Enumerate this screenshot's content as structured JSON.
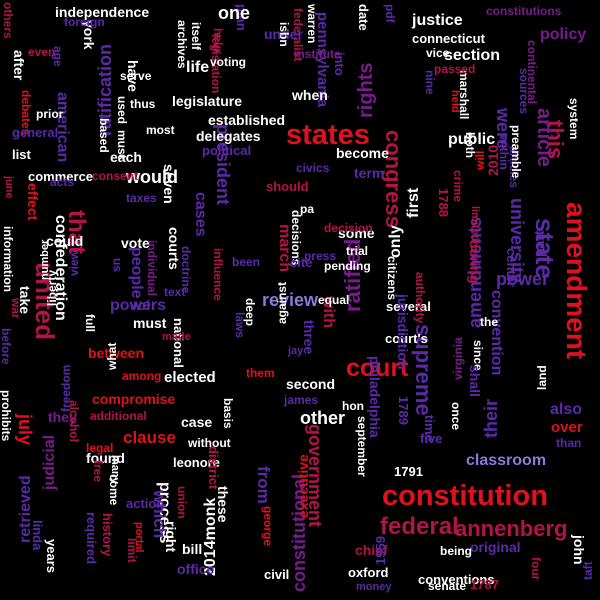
{
  "palette": {
    "background": "#000000",
    "red": "#e0101c",
    "crimson": "#b3124a",
    "purple": "#7a1a8c",
    "violet": "#5a2aa8",
    "blue": "#2a2ad6",
    "lavender": "#8c7ad8",
    "white": "#ffffff"
  },
  "words": [
    {
      "text": "constitution",
      "color": "#e0101c"
    },
    {
      "text": "states",
      "color": "#e0101c"
    },
    {
      "text": "amendment",
      "color": "#e0101c"
    },
    {
      "text": "united",
      "color": "#b3124a"
    },
    {
      "text": "court",
      "color": "#e0101c"
    },
    {
      "text": "federal",
      "color": "#b3124a"
    },
    {
      "text": "annenberg",
      "color": "#b3124a"
    },
    {
      "text": "state",
      "color": "#5a2aa8"
    },
    {
      "text": "this",
      "color": "#b3124a"
    },
    {
      "text": "congress",
      "color": "#b3124a"
    },
    {
      "text": "that",
      "color": "#b3124a"
    },
    {
      "text": "supreme",
      "color": "#5a2aa8"
    },
    {
      "text": "article",
      "color": "#7a1a8c"
    },
    {
      "text": "ratified",
      "color": "#7a1a8c"
    },
    {
      "text": "rights",
      "color": "#7a1a8c"
    },
    {
      "text": "president",
      "color": "#5a2aa8"
    },
    {
      "text": "government",
      "color": "#b3124a"
    },
    {
      "text": "from",
      "color": "#5a2aa8"
    },
    {
      "text": "would",
      "color": "#ffffff"
    },
    {
      "text": "review",
      "color": "#8c7ad8"
    },
    {
      "text": "confederation",
      "color": "#ffffff"
    },
    {
      "text": "ratification",
      "color": "#5a2aa8"
    },
    {
      "text": "amendments",
      "color": "#5a2aa8"
    },
    {
      "text": "university",
      "color": "#5a2aa8"
    },
    {
      "text": "their",
      "color": "#5a2aa8"
    },
    {
      "text": "power",
      "color": "#5a2aa8"
    },
    {
      "text": "classroom",
      "color": "#8c7ad8"
    },
    {
      "text": "process",
      "color": "#ffffff"
    },
    {
      "text": "which",
      "color": "#5a2aa8"
    },
    {
      "text": "2014monk",
      "color": "#ffffff"
    },
    {
      "text": "constitutional",
      "color": "#7a1a8c"
    },
    {
      "text": "executive",
      "color": "#e0101c"
    },
    {
      "text": "other",
      "color": "#ffffff"
    },
    {
      "text": "clause",
      "color": "#e0101c"
    },
    {
      "text": "only",
      "color": "#ffffff"
    },
    {
      "text": "first",
      "color": "#ffffff"
    },
    {
      "text": "public",
      "color": "#ffffff"
    },
    {
      "text": "justice",
      "color": "#ffffff"
    },
    {
      "text": "section",
      "color": "#ffffff"
    },
    {
      "text": "policy",
      "color": "#7a1a8c"
    },
    {
      "text": "constitutions",
      "color": "#7a1a8c"
    },
    {
      "text": "independence",
      "color": "#ffffff"
    },
    {
      "text": "american",
      "color": "#5a2aa8"
    },
    {
      "text": "legislature",
      "color": "#ffffff"
    },
    {
      "text": "established",
      "color": "#ffffff"
    },
    {
      "text": "delegates",
      "color": "#ffffff"
    },
    {
      "text": "pennsylvania",
      "color": "#5a2aa8"
    },
    {
      "text": "federalist",
      "color": "#b3124a"
    },
    {
      "text": "connecticut",
      "color": "#ffffff"
    },
    {
      "text": "convention",
      "color": "#5a2aa8"
    },
    {
      "text": "elected",
      "color": "#ffffff"
    },
    {
      "text": "original",
      "color": "#5a2aa8"
    },
    {
      "text": "retrieved",
      "color": "#5a2aa8"
    },
    {
      "text": "judicial",
      "color": "#7a1a8c"
    },
    {
      "text": "philadelphia",
      "color": "#5a2aa8"
    },
    {
      "text": "september",
      "color": "#ffffff"
    },
    {
      "text": "conventions",
      "color": "#ffffff"
    },
    {
      "text": "senate",
      "color": "#ffffff"
    },
    {
      "text": "being",
      "color": "#ffffff"
    },
    {
      "text": "chief",
      "color": "#b3124a"
    },
    {
      "text": "oxford",
      "color": "#ffffff"
    },
    {
      "text": "money",
      "color": "#5a2aa8"
    },
    {
      "text": "1791",
      "color": "#ffffff"
    },
    {
      "text": "1787",
      "color": "#b3124a"
    },
    {
      "text": "1788",
      "color": "#b3124a"
    },
    {
      "text": "1789",
      "color": "#5a2aa8"
    },
    {
      "text": "1959",
      "color": "#5a2aa8"
    },
    {
      "text": "john",
      "color": "#ffffff"
    },
    {
      "text": "taft",
      "color": "#5a2aa8"
    },
    {
      "text": "four",
      "color": "#b3124a"
    },
    {
      "text": "james",
      "color": "#5a2aa8"
    },
    {
      "text": "case",
      "color": "#ffffff"
    },
    {
      "text": "cases",
      "color": "#5a2aa8"
    },
    {
      "text": "courts",
      "color": "#ffffff"
    },
    {
      "text": "each",
      "color": "#ffffff"
    },
    {
      "text": "vote",
      "color": "#ffffff"
    },
    {
      "text": "people",
      "color": "#5a2aa8"
    },
    {
      "text": "powers",
      "color": "#5a2aa8"
    },
    {
      "text": "must",
      "color": "#ffffff"
    },
    {
      "text": "between",
      "color": "#e0101c"
    },
    {
      "text": "national",
      "color": "#ffffff"
    },
    {
      "text": "compromise",
      "color": "#e0101c"
    },
    {
      "text": "additional",
      "color": "#b3124a"
    },
    {
      "text": "freedom",
      "color": "#5a2aa8"
    },
    {
      "text": "leonore",
      "color": "#ffffff"
    },
    {
      "text": "without",
      "color": "#ffffff"
    },
    {
      "text": "district",
      "color": "#b3124a"
    },
    {
      "text": "office",
      "color": "#5a2aa8"
    },
    {
      "text": "bill",
      "color": "#ffffff"
    },
    {
      "text": "right",
      "color": "#ffffff"
    },
    {
      "text": "action",
      "color": "#5a2aa8"
    },
    {
      "text": "years",
      "color": "#ffffff"
    },
    {
      "text": "linda",
      "color": "#5a2aa8"
    },
    {
      "text": "history",
      "color": "#b3124a"
    },
    {
      "text": "required",
      "color": "#5a2aa8"
    },
    {
      "text": "these",
      "color": "#ffffff"
    },
    {
      "text": "civil",
      "color": "#ffffff"
    },
    {
      "text": "george",
      "color": "#e0101c"
    },
    {
      "text": "second",
      "color": "#ffffff"
    },
    {
      "text": "three",
      "color": "#5a2aa8"
    },
    {
      "text": "against",
      "color": "#ffffff"
    },
    {
      "text": "deep",
      "color": "#ffffff"
    },
    {
      "text": "laws",
      "color": "#5a2aa8"
    },
    {
      "text": "them",
      "color": "#e0101c"
    },
    {
      "text": "made",
      "color": "#b3124a"
    },
    {
      "text": "with",
      "color": "#b3124a"
    },
    {
      "text": "equal",
      "color": "#ffffff"
    },
    {
      "text": "pending",
      "color": "#ffffff"
    },
    {
      "text": "trial",
      "color": "#ffffff"
    },
    {
      "text": "some",
      "color": "#ffffff"
    },
    {
      "text": "citizens",
      "color": "#ffffff"
    },
    {
      "text": "several",
      "color": "#ffffff"
    },
    {
      "text": "court's",
      "color": "#ffffff"
    },
    {
      "text": "jurisdiction",
      "color": "#5a2aa8"
    },
    {
      "text": "during",
      "color": "#b3124a"
    },
    {
      "text": "2010",
      "color": "#b3124a"
    },
    {
      "text": "center",
      "color": "#5a2aa8"
    },
    {
      "text": "part",
      "color": "#5a2aa8"
    },
    {
      "text": "since",
      "color": "#ffffff"
    },
    {
      "text": "shall",
      "color": "#5a2aa8"
    },
    {
      "text": "land",
      "color": "#ffffff"
    },
    {
      "text": "also",
      "color": "#5a2aa8"
    },
    {
      "text": "over",
      "color": "#e0101c"
    },
    {
      "text": "than",
      "color": "#5a2aa8"
    },
    {
      "text": "five",
      "color": "#5a2aa8"
    },
    {
      "text": "time",
      "color": "#5a2aa8"
    },
    {
      "text": "once",
      "color": "#ffffff"
    },
    {
      "text": "virginia",
      "color": "#7a1a8c"
    },
    {
      "text": "within",
      "color": "#5a2aa8"
    },
    {
      "text": "both",
      "color": "#ffffff"
    },
    {
      "text": "limited",
      "color": "#b3124a"
    },
    {
      "text": "system",
      "color": "#ffffff"
    },
    {
      "text": "were",
      "color": "#5a2aa8"
    },
    {
      "text": "articles",
      "color": "#5a2aa8"
    },
    {
      "text": "preamble",
      "color": "#ffffff"
    },
    {
      "text": "sources",
      "color": "#5a2aa8"
    },
    {
      "text": "nine",
      "color": "#5a2aa8"
    },
    {
      "text": "marshall",
      "color": "#ffffff"
    },
    {
      "text": "held",
      "color": "#e0101c"
    },
    {
      "text": "passed",
      "color": "#b3124a"
    },
    {
      "text": "vice",
      "color": "#ffffff"
    },
    {
      "text": "term",
      "color": "#5a2aa8"
    },
    {
      "text": "become",
      "color": "#ffffff"
    },
    {
      "text": "civics",
      "color": "#5a2aa8"
    },
    {
      "text": "should",
      "color": "#b3124a"
    },
    {
      "text": "decisions",
      "color": "#ffffff"
    },
    {
      "text": "decision",
      "color": "#b3124a"
    },
    {
      "text": "press",
      "color": "#5a2aa8"
    },
    {
      "text": "march",
      "color": "#b3124a"
    },
    {
      "text": "been",
      "color": "#5a2aa8"
    },
    {
      "text": "life",
      "color": "#ffffff"
    },
    {
      "text": "under",
      "color": "#5a2aa8"
    },
    {
      "text": "when",
      "color": "#ffffff"
    },
    {
      "text": "into",
      "color": "#5a2aa8"
    },
    {
      "text": "institute",
      "color": "#7a1a8c"
    },
    {
      "text": "seven",
      "color": "#ffffff"
    },
    {
      "text": "political",
      "color": "#5a2aa8"
    },
    {
      "text": "plan",
      "color": "#5a2aa8"
    },
    {
      "text": "legislation",
      "color": "#b3124a"
    },
    {
      "text": "voting",
      "color": "#ffffff"
    },
    {
      "text": "itself",
      "color": "#ffffff"
    },
    {
      "text": "archives",
      "color": "#ffffff"
    },
    {
      "text": "have",
      "color": "#ffffff"
    },
    {
      "text": "york",
      "color": "#ffffff"
    },
    {
      "text": "serve",
      "color": "#ffffff"
    },
    {
      "text": "after",
      "color": "#ffffff"
    },
    {
      "text": "debates",
      "color": "#e0101c"
    },
    {
      "text": "foreign",
      "color": "#5a2aa8"
    },
    {
      "text": "even",
      "color": "#b3124a"
    },
    {
      "text": "others",
      "color": "#b3124a"
    },
    {
      "text": "prior",
      "color": "#ffffff"
    },
    {
      "text": "general",
      "color": "#5a2aa8"
    },
    {
      "text": "list",
      "color": "#ffffff"
    },
    {
      "text": "commerce",
      "color": "#ffffff"
    },
    {
      "text": "june",
      "color": "#b3124a"
    },
    {
      "text": "effect",
      "color": "#e0101c"
    },
    {
      "text": "could",
      "color": "#ffffff"
    },
    {
      "text": "information",
      "color": "#ffffff"
    },
    {
      "text": "number",
      "color": "#ffffff"
    },
    {
      "text": "take",
      "color": "#ffffff"
    },
    {
      "text": "liberty",
      "color": "#ffffff"
    },
    {
      "text": "view",
      "color": "#5a2aa8"
    },
    {
      "text": "before",
      "color": "#5a2aa8"
    },
    {
      "text": "prohibits",
      "color": "#ffffff"
    },
    {
      "text": "they",
      "color": "#7a1a8c"
    },
    {
      "text": "july",
      "color": "#e0101c"
    },
    {
      "text": "legal",
      "color": "#e0101c"
    },
    {
      "text": "found",
      "color": "#ffffff"
    },
    {
      "text": "free",
      "color": "#b3124a"
    },
    {
      "text": "come",
      "color": "#ffffff"
    },
    {
      "text": "many",
      "color": "#ffffff"
    },
    {
      "text": "what",
      "color": "#ffffff"
    },
    {
      "text": "full",
      "color": "#ffffff"
    },
    {
      "text": "text",
      "color": "#5a2aa8"
    },
    {
      "text": "consent",
      "color": "#b3124a"
    },
    {
      "text": "taxes",
      "color": "#5a2aa8"
    },
    {
      "text": "individual",
      "color": "#7a1a8c"
    },
    {
      "text": "doctrine",
      "color": "#5a2aa8"
    },
    {
      "text": "influence",
      "color": "#b3124a"
    },
    {
      "text": "basis",
      "color": "#ffffff"
    },
    {
      "text": "jay",
      "color": "#5a2aa8"
    },
    {
      "text": "among",
      "color": "#e0101c"
    },
    {
      "text": "union",
      "color": "#b3124a"
    },
    {
      "text": "authority",
      "color": "#b3124a"
    },
    {
      "text": "will",
      "color": "#e0101c"
    },
    {
      "text": "crime",
      "color": "#b3124a"
    },
    {
      "text": "limit",
      "color": "#b3124a"
    },
    {
      "text": "portal",
      "color": "#e0101c"
    },
    {
      "text": "based",
      "color": "#ffffff"
    },
    {
      "text": "thus",
      "color": "#ffffff"
    },
    {
      "text": "used",
      "color": "#ffffff"
    },
    {
      "text": "must",
      "color": "#ffffff"
    },
    {
      "text": "most",
      "color": "#ffffff"
    },
    {
      "text": "help",
      "color": "#b3124a"
    },
    {
      "text": "warren",
      "color": "#ffffff"
    },
    {
      "text": "date",
      "color": "#ffffff"
    },
    {
      "text": "pdf",
      "color": "#5a2aa8"
    },
    {
      "text": "isbn",
      "color": "#ffffff"
    },
    {
      "text": "age",
      "color": "#5a2aa8"
    },
    {
      "text": "continental",
      "color": "#7a1a8c"
    },
    {
      "text": "alcohol",
      "color": "#b3124a"
    },
    {
      "text": "war",
      "color": "#b3124a"
    },
    {
      "text": "acts",
      "color": "#5a2aa8"
    },
    {
      "text": "sn",
      "color": "#5a2aa8"
    },
    {
      "text": "one",
      "color": "#ffffff"
    },
    {
      "text": "pa",
      "color": "#ffffff"
    },
    {
      "text": "cite",
      "color": "#5a2aa8"
    },
    {
      "text": "hon",
      "color": "#ffffff"
    },
    {
      "text": "the",
      "color": "#ffffff"
    },
    {
      "text": "vol",
      "color": "#5a2aa8"
    }
  ]
}
